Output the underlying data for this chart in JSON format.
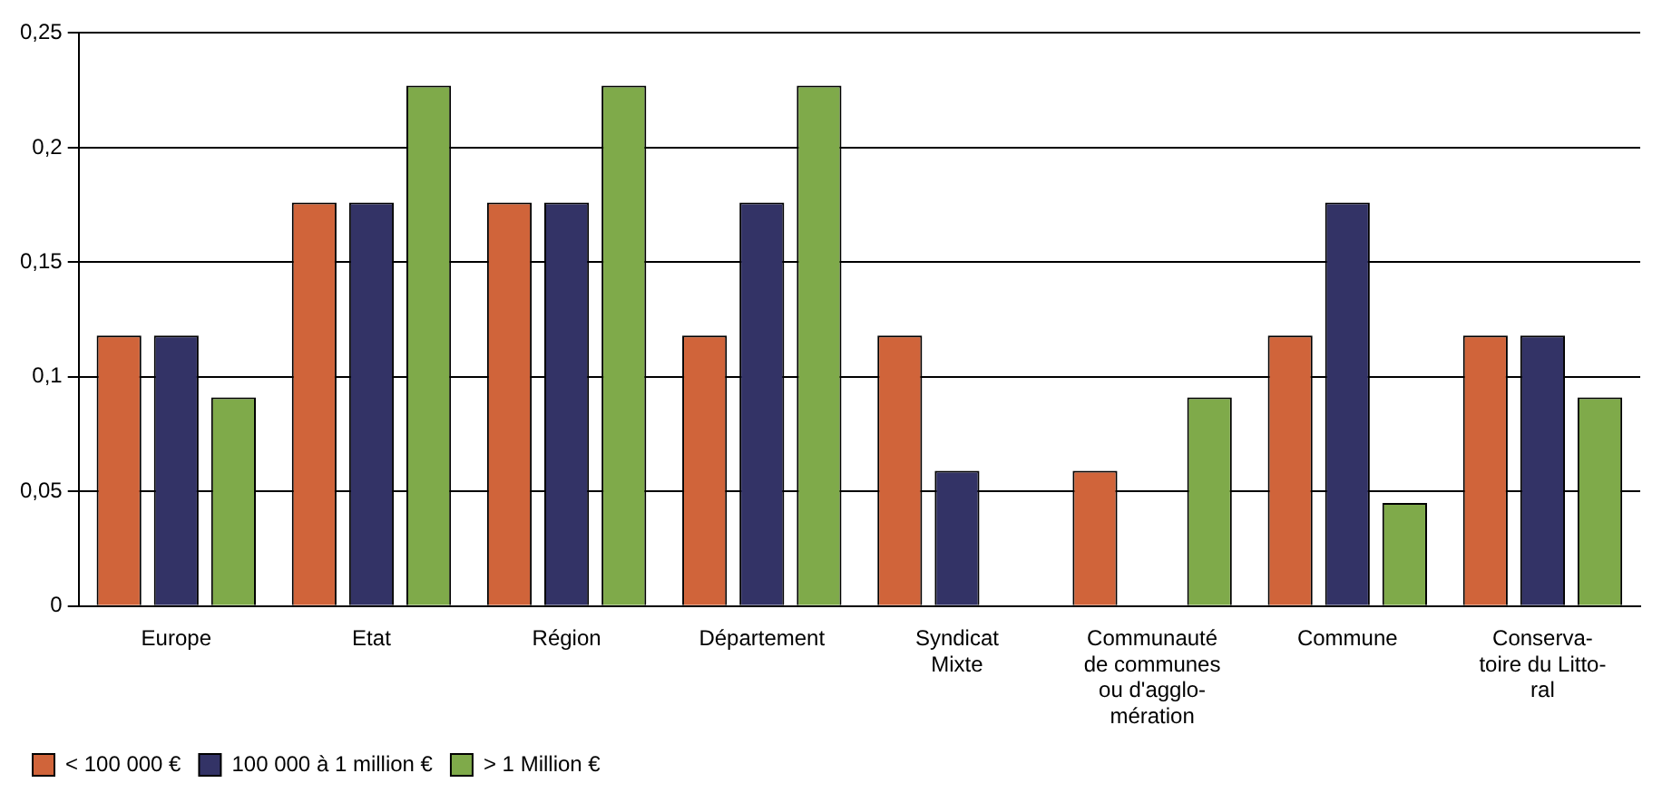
{
  "chart_data": {
    "type": "bar",
    "categories": [
      "Europe",
      "Etat",
      "Région",
      "Département",
      "Syndicat\nMixte",
      "Communauté\nde communes\nou d'agglo-\nmération",
      "Commune",
      "Conserva-\ntoire du Litto-\nral"
    ],
    "series": [
      {
        "name": "< 100 000 €",
        "color": "#d0643a",
        "values": [
          0.118,
          0.176,
          0.176,
          0.118,
          0.118,
          0.059,
          0.118,
          0.118
        ]
      },
      {
        "name": "100 000 à 1 million €",
        "color": "#333366",
        "values": [
          0.118,
          0.176,
          0.176,
          0.176,
          0.059,
          0,
          0.176,
          0.118
        ]
      },
      {
        "name": "> 1 Million €",
        "color": "#7faa4a",
        "values": [
          0.091,
          0.227,
          0.227,
          0.227,
          0,
          0.091,
          0.045,
          0.091
        ]
      }
    ],
    "ylim": [
      0,
      0.25
    ],
    "yticks": [
      {
        "value": 0,
        "label": "0"
      },
      {
        "value": 0.05,
        "label": "0,05"
      },
      {
        "value": 0.1,
        "label": "0,1"
      },
      {
        "value": 0.15,
        "label": "0,15"
      },
      {
        "value": 0.2,
        "label": "0,2"
      },
      {
        "value": 0.25,
        "label": "0,25"
      }
    ],
    "grid": "y",
    "legend": "bottom left"
  }
}
